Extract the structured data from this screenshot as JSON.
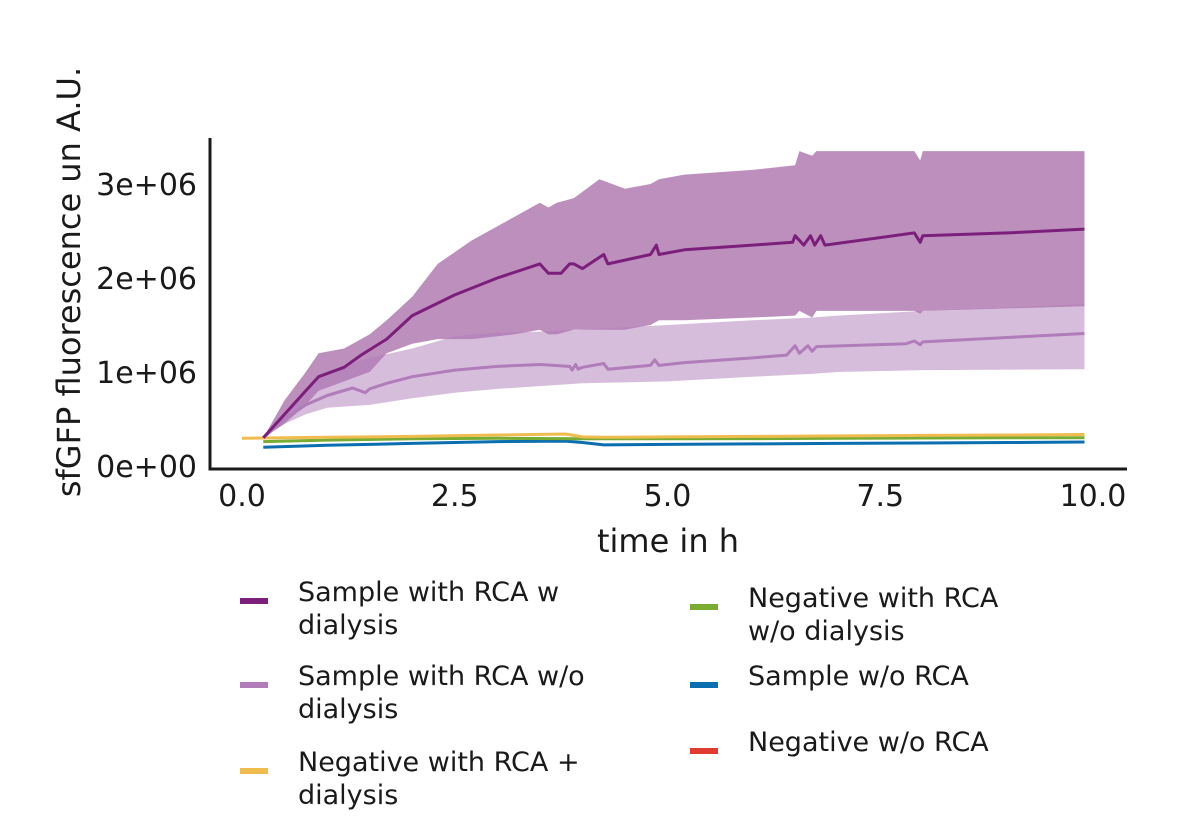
{
  "chart_data": {
    "type": "line",
    "title": "",
    "xlabel": "time in h",
    "ylabel": "sfGFP fluorescence un A.U.",
    "xlim": [
      -0.35,
      10.45
    ],
    "ylim": [
      -50000,
      3550000
    ],
    "xticks": [
      0.0,
      2.5,
      5.0,
      7.5,
      10.0
    ],
    "xtick_labels": [
      "0.0",
      "2.5",
      "5.0",
      "7.5",
      "10.0"
    ],
    "yticks": [
      0,
      1000000,
      2000000,
      3000000
    ],
    "ytick_labels": [
      "0e+00",
      "1e+06",
      "2e+06",
      "3e+06"
    ],
    "grid": false,
    "legend_position": "bottom",
    "series": [
      {
        "name": "Sample with RCA w\ndialysis",
        "color": "#7b1f7b",
        "x": [
          0.25,
          0.5,
          0.75,
          0.9,
          1.2,
          1.4,
          1.7,
          2.0,
          2.5,
          3.0,
          3.5,
          3.6,
          3.75,
          3.85,
          3.9,
          4.0,
          4.25,
          4.3,
          4.8,
          4.87,
          4.9,
          5.2,
          6.0,
          6.47,
          6.5,
          6.6,
          6.68,
          6.73,
          6.8,
          6.85,
          7.9,
          7.97,
          8.0,
          9.0,
          9.9
        ],
        "y": [
          300000,
          550000,
          800000,
          950000,
          1050000,
          1180000,
          1350000,
          1600000,
          1820000,
          2000000,
          2150000,
          2050000,
          2050000,
          2150000,
          2150000,
          2100000,
          2250000,
          2150000,
          2250000,
          2350000,
          2250000,
          2300000,
          2350000,
          2380000,
          2450000,
          2350000,
          2450000,
          2350000,
          2450000,
          2350000,
          2480000,
          2380000,
          2450000,
          2480000,
          2520000
        ],
        "band": {
          "x": [
            0.25,
            0.5,
            0.75,
            0.9,
            1.2,
            1.5,
            1.7,
            2.0,
            2.3,
            2.7,
            3.2,
            3.5,
            3.6,
            3.7,
            3.9,
            4.2,
            4.5,
            4.8,
            4.9,
            5.2,
            6.0,
            6.5,
            6.55,
            6.7,
            6.75,
            7.9,
            7.97,
            8.0,
            9.9
          ],
          "upper": [
            300000,
            700000,
            1000000,
            1200000,
            1250000,
            1400000,
            1550000,
            1800000,
            2150000,
            2400000,
            2650000,
            2800000,
            2750000,
            2800000,
            2850000,
            3050000,
            2950000,
            3000000,
            3050000,
            3100000,
            3150000,
            3200000,
            3350000,
            3300000,
            3350000,
            3350000,
            3250000,
            3350000,
            3350000
          ],
          "lower": [
            300000,
            450000,
            650000,
            800000,
            900000,
            1000000,
            1200000,
            1300000,
            1350000,
            1350000,
            1400000,
            1450000,
            1400000,
            1400000,
            1450000,
            1450000,
            1450000,
            1500000,
            1550000,
            1550000,
            1580000,
            1600000,
            1650000,
            1580000,
            1650000,
            1650000,
            1620000,
            1650000,
            1700000
          ]
        }
      },
      {
        "name": "Sample with RCA w/o\ndialysis",
        "color": "#b07cb9",
        "x": [
          0.25,
          0.5,
          0.75,
          1.0,
          1.3,
          1.45,
          1.5,
          1.7,
          2.0,
          2.5,
          3.0,
          3.5,
          3.85,
          3.88,
          3.92,
          3.95,
          4.0,
          4.25,
          4.3,
          4.8,
          4.85,
          4.9,
          5.2,
          6.0,
          6.4,
          6.5,
          6.55,
          6.65,
          6.7,
          6.75,
          7.8,
          7.9,
          7.97,
          8.0,
          9.9
        ],
        "y": [
          300000,
          500000,
          650000,
          750000,
          830000,
          780000,
          820000,
          880000,
          950000,
          1020000,
          1060000,
          1080000,
          1060000,
          1020000,
          1080000,
          1030000,
          1050000,
          1090000,
          1030000,
          1070000,
          1130000,
          1070000,
          1100000,
          1150000,
          1180000,
          1280000,
          1200000,
          1280000,
          1220000,
          1270000,
          1300000,
          1330000,
          1290000,
          1320000,
          1410000
        ],
        "band": {
          "x": [
            0.25,
            0.5,
            0.75,
            1.0,
            1.5,
            2.0,
            2.5,
            3.0,
            3.5,
            4.0,
            5.0,
            6.0,
            6.7,
            7.0,
            8.0,
            9.9
          ],
          "upper": [
            300000,
            550000,
            800000,
            1000000,
            1150000,
            1250000,
            1380000,
            1420000,
            1430000,
            1450000,
            1500000,
            1550000,
            1580000,
            1600000,
            1650000,
            1720000
          ],
          "lower": [
            300000,
            450000,
            550000,
            620000,
            650000,
            720000,
            780000,
            820000,
            850000,
            880000,
            900000,
            950000,
            980000,
            1000000,
            1020000,
            1030000
          ]
        }
      },
      {
        "name": "Negative with RCA +\ndialysis",
        "color": "#f0bc50",
        "x": [
          0.0,
          1.0,
          2.0,
          3.0,
          3.8,
          4.0,
          4.25,
          5.0,
          6.0,
          7.0,
          8.0,
          9.0,
          9.9
        ],
        "y": [
          295000,
          305000,
          315000,
          330000,
          340000,
          310000,
          305000,
          310000,
          315000,
          320000,
          325000,
          330000,
          335000
        ]
      },
      {
        "name": "Negative with RCA\nw/o dialysis",
        "color": "#78ac32",
        "x": [
          0.25,
          1.0,
          2.0,
          3.0,
          4.0,
          5.0,
          6.0,
          7.0,
          8.0,
          9.0,
          9.9
        ],
        "y": [
          260000,
          275000,
          290000,
          295000,
          290000,
          290000,
          292000,
          295000,
          298000,
          300000,
          300000
        ]
      },
      {
        "name": "Sample w/o RCA",
        "color": "#0b6eaf",
        "x": [
          0.25,
          1.0,
          2.0,
          3.0,
          3.8,
          4.0,
          4.25,
          5.0,
          6.0,
          7.0,
          8.0,
          9.0,
          9.9
        ],
        "y": [
          200000,
          220000,
          240000,
          260000,
          265000,
          250000,
          225000,
          230000,
          235000,
          240000,
          245000,
          250000,
          255000
        ]
      },
      {
        "name": "Negative w/o RCA",
        "color": "#e13b2f",
        "x": [],
        "y": []
      }
    ]
  }
}
